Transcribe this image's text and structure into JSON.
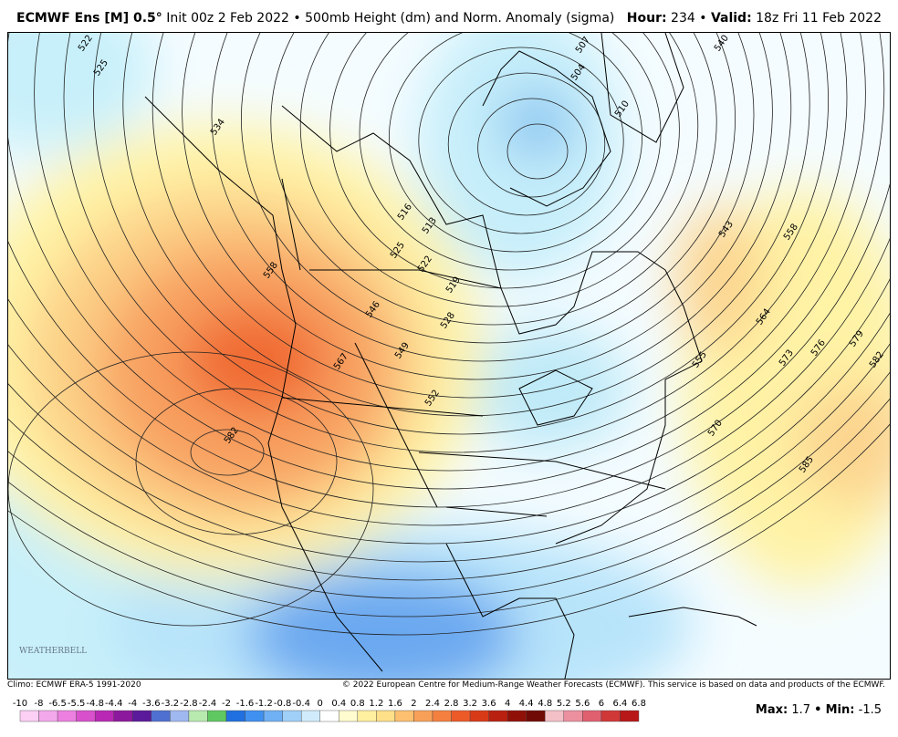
{
  "header": {
    "model": "ECMWF Ens [M] 0.5°",
    "init": "Init 00z 2 Feb 2022",
    "sep": "•",
    "field": "500mb Height (dm) and Norm. Anomaly (sigma)",
    "hour_label": "Hour:",
    "hour": "234",
    "valid_label": "Valid:",
    "valid": "18z Fri 11 Feb 2022"
  },
  "map": {
    "contour_labels": [
      522,
      525,
      534,
      516,
      513,
      525,
      522,
      519,
      528,
      546,
      549,
      552,
      558,
      567,
      582,
      507,
      504,
      510,
      540,
      543,
      558,
      564,
      555,
      573,
      576,
      579,
      582,
      570,
      585
    ],
    "logo": "WEATHERBELL"
  },
  "footer": {
    "climo": "Climo: ECMWF ERA-5 1991-2020",
    "copyright": "© 2022 European Centre for Medium-Range Weather Forecasts (ECMWF). This service is based on data and products of the ECMWF."
  },
  "colorbar": {
    "ticks": [
      -10,
      -8,
      -6.5,
      -5.5,
      -4.8,
      -4.4,
      -4,
      -3.6,
      -3.2,
      -2.8,
      -2.4,
      -2,
      -1.6,
      -1.2,
      -0.8,
      -0.4,
      0,
      0.4,
      0.8,
      1.2,
      1.6,
      2,
      2.4,
      2.8,
      3.2,
      3.6,
      4,
      4.4,
      4.8,
      5.2,
      5.6,
      6,
      6.4,
      6.8
    ],
    "colors": [
      "#fbd0f4",
      "#f4a8ec",
      "#ec80e0",
      "#d850cc",
      "#b828b4",
      "#8c189c",
      "#5a1a9a",
      "#5070d0",
      "#a0b8f0",
      "#b8eab0",
      "#60c860",
      "#2070e0",
      "#4090f0",
      "#70b0f4",
      "#a0d0f8",
      "#d0ecfc",
      "#ffffff",
      "#fffcd0",
      "#fff0a0",
      "#fde088",
      "#fcc070",
      "#f8a058",
      "#f48040",
      "#ec5a28",
      "#d83a18",
      "#b82010",
      "#901008",
      "#700a06",
      "#f4c0c8",
      "#ec90a0",
      "#e06070",
      "#d03838",
      "#b81818"
    ]
  },
  "stats": {
    "max_label": "Max:",
    "max": 1.7,
    "min_label": "Min:",
    "min": -1.5
  }
}
